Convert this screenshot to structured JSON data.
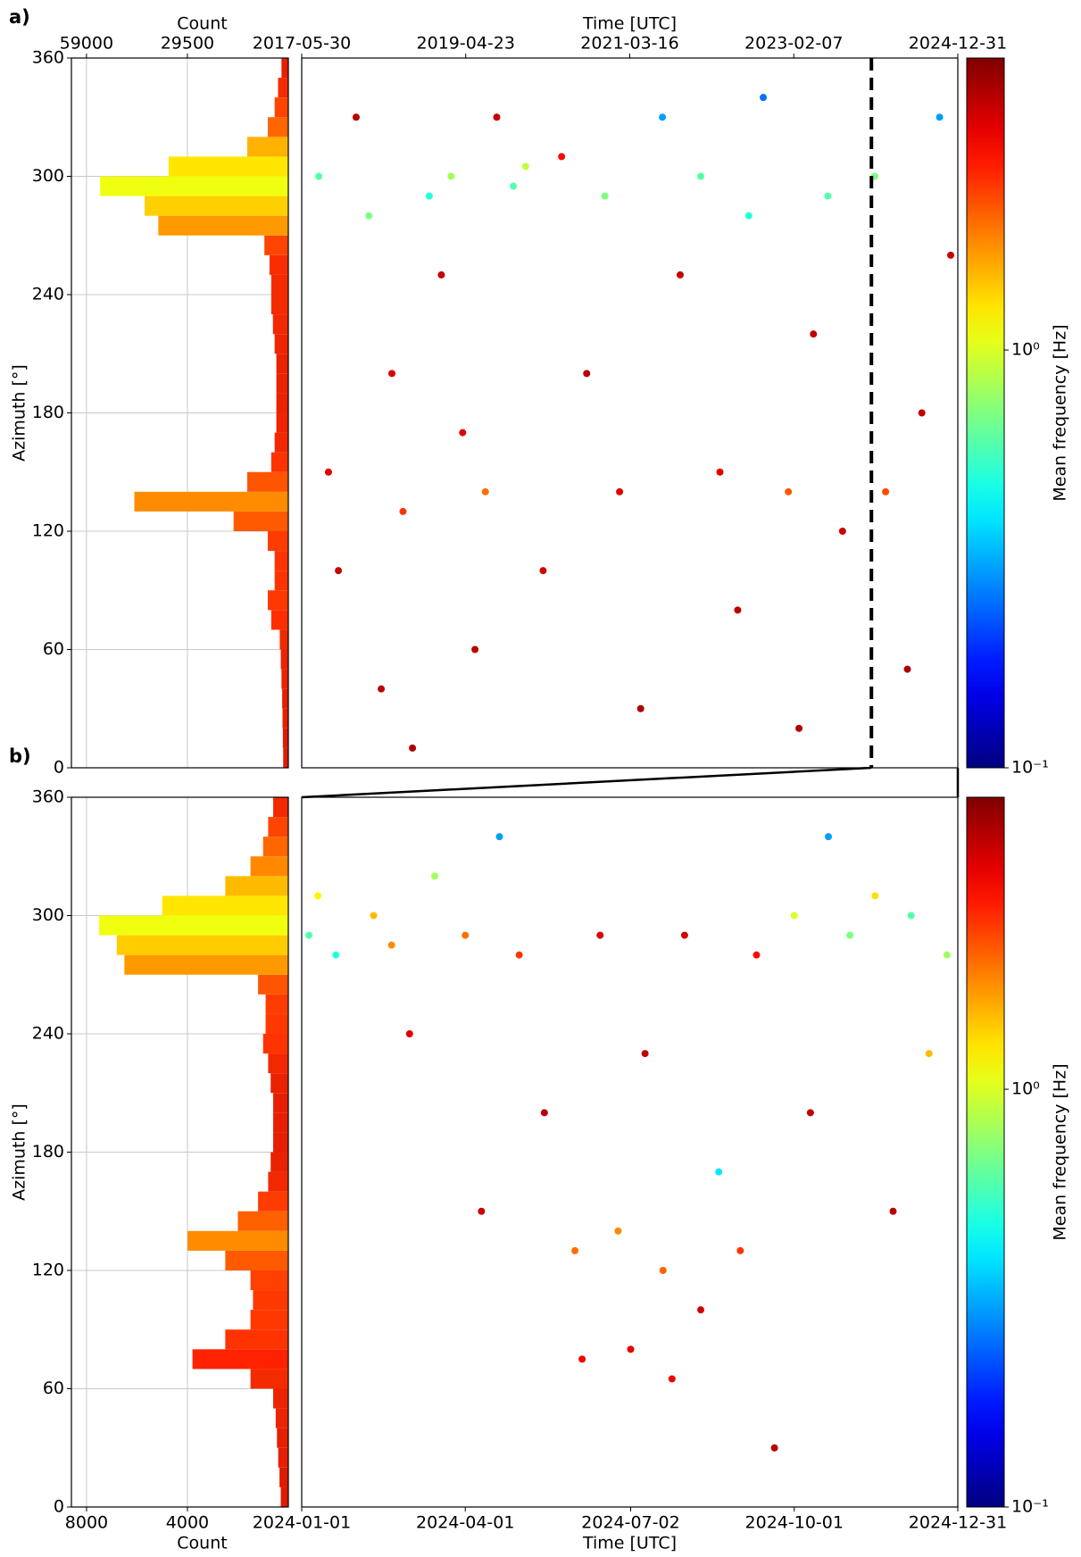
{
  "chart_data": [
    {
      "type": "histogram",
      "panel": "a",
      "xlabel": "Count",
      "ylabel": "Azimuth [°]",
      "xaxis_position": "top",
      "xlim": [
        63400,
        0
      ],
      "xticks": [
        59000,
        29500
      ],
      "ylim": [
        0,
        360
      ],
      "yticks": [
        0,
        60,
        120,
        180,
        240,
        300,
        360
      ],
      "grid": true,
      "bins": [
        0,
        10,
        20,
        30,
        40,
        50,
        60,
        70,
        80,
        90,
        100,
        110,
        120,
        130,
        140,
        150,
        160,
        170,
        180,
        190,
        200,
        210,
        220,
        230,
        240,
        250,
        260,
        270,
        280,
        290,
        300,
        310,
        320,
        330,
        340,
        350,
        360
      ],
      "counts": [
        1500,
        1600,
        1700,
        1800,
        2000,
        2200,
        2500,
        5000,
        6000,
        4000,
        4000,
        6000,
        16000,
        45000,
        12000,
        5000,
        4000,
        3500,
        3500,
        3500,
        3500,
        4000,
        4500,
        5000,
        5000,
        5500,
        7000,
        38000,
        42000,
        55000,
        35000,
        12000,
        6000,
        4000,
        3000,
        2000
      ],
      "colors": [
        "#e01b00",
        "#e01b00",
        "#e61f00",
        "#e61f00",
        "#ec2300",
        "#ec2300",
        "#f02a00",
        "#ff2e00",
        "#ff3800",
        "#ff3300",
        "#ff3300",
        "#ff3c00",
        "#ff5a00",
        "#ff8c00",
        "#ff5500",
        "#ff3300",
        "#f22800",
        "#ee2500",
        "#ea2200",
        "#ea2200",
        "#ea2200",
        "#ee2500",
        "#f22800",
        "#f52b00",
        "#f52b00",
        "#f82e00",
        "#ff4400",
        "#ff9900",
        "#ffd000",
        "#f0ff10",
        "#ffe600",
        "#ffb300",
        "#ff6600",
        "#ff4400",
        "#f52b00",
        "#e61f00"
      ]
    },
    {
      "type": "scatter",
      "panel_label": "a)",
      "xlabel": "Time [UTC]",
      "xaxis_position": "top",
      "xlim": [
        "2017-05-30",
        "2024-12-31"
      ],
      "xticks": [
        "2017-05-30",
        "2019-04-23",
        "2021-03-16",
        "2023-02-07",
        "2024-12-31"
      ],
      "ylim": [
        0,
        360
      ],
      "x": [
        "2017-08-10",
        "2017-09-20",
        "2017-11-01",
        "2018-01-15",
        "2018-03-10",
        "2018-05-01",
        "2018-06-15",
        "2018-08-01",
        "2018-09-10",
        "2018-11-20",
        "2019-01-10",
        "2019-02-20",
        "2019-04-10",
        "2019-06-01",
        "2019-07-15",
        "2019-09-01",
        "2019-11-10",
        "2020-01-01",
        "2020-03-15",
        "2020-06-01",
        "2020-09-15",
        "2020-12-01",
        "2021-02-01",
        "2021-05-01",
        "2021-08-01",
        "2021-10-15",
        "2022-01-10",
        "2022-04-01",
        "2022-06-15",
        "2022-08-01",
        "2022-10-01",
        "2023-01-15",
        "2023-03-01",
        "2023-05-01",
        "2023-07-01",
        "2023-09-01",
        "2024-01-15",
        "2024-03-01",
        "2024-06-01",
        "2024-08-01",
        "2024-10-15",
        "2024-12-01"
      ],
      "y": [
        300,
        150,
        100,
        330,
        280,
        40,
        200,
        130,
        10,
        290,
        250,
        300,
        170,
        60,
        140,
        330,
        295,
        305,
        100,
        310,
        200,
        290,
        140,
        30,
        330,
        250,
        300,
        150,
        80,
        280,
        340,
        140,
        20,
        220,
        290,
        120,
        300,
        140,
        50,
        180,
        330,
        260
      ],
      "values": [
        0.6,
        3.5,
        3.8,
        4,
        0.7,
        4,
        3.5,
        2.5,
        4.2,
        0.5,
        3.8,
        0.8,
        3.5,
        4,
        2,
        3.8,
        0.6,
        0.9,
        3.6,
        3,
        4,
        0.7,
        3.5,
        4.2,
        0.3,
        3.8,
        0.6,
        3.4,
        4,
        0.5,
        0.25,
        2.2,
        4.1,
        3.9,
        0.6,
        3.7,
        0.7,
        2.3,
        4.2,
        3.9,
        0.3,
        3.8
      ],
      "colorbar": {
        "label": "Mean frequency [Hz]",
        "colormap": "jet",
        "log": true,
        "lim": [
          0.1,
          5
        ],
        "ticks": [
          {
            "value": 1,
            "label": "10⁰"
          },
          {
            "value": 0.1,
            "label": "10⁻¹"
          }
        ]
      }
    },
    {
      "type": "histogram",
      "panel": "b",
      "xlabel": "Count",
      "ylabel": "Azimuth [°]",
      "xaxis_position": "bottom",
      "xlim": [
        8600,
        0
      ],
      "xticks": [
        8000,
        4000
      ],
      "ylim": [
        0,
        360
      ],
      "yticks": [
        0,
        60,
        120,
        180,
        240,
        300,
        360
      ],
      "grid": true,
      "bins": [
        0,
        10,
        20,
        30,
        40,
        50,
        60,
        70,
        80,
        90,
        100,
        110,
        120,
        130,
        140,
        150,
        160,
        170,
        180,
        190,
        200,
        210,
        220,
        230,
        240,
        250,
        260,
        270,
        280,
        290,
        300,
        310,
        320,
        330,
        340,
        350,
        360
      ],
      "counts": [
        300,
        350,
        400,
        450,
        500,
        600,
        1500,
        3800,
        2500,
        1500,
        1400,
        1500,
        2500,
        4000,
        2000,
        1200,
        800,
        700,
        600,
        600,
        600,
        700,
        800,
        1000,
        900,
        900,
        1200,
        6500,
        6800,
        7500,
        5000,
        2500,
        1500,
        1000,
        800,
        600
      ],
      "colors": [
        "#e01b00",
        "#e01b00",
        "#e61f00",
        "#e61f00",
        "#ec2300",
        "#ec2300",
        "#f52b00",
        "#ff2200",
        "#ff3300",
        "#ff3800",
        "#ff3800",
        "#ff4000",
        "#ff5a00",
        "#ff8c00",
        "#ff6000",
        "#ff3c00",
        "#f22800",
        "#ea2200",
        "#e61f00",
        "#e61f00",
        "#e61f00",
        "#ea2200",
        "#f22800",
        "#ff3300",
        "#ff3800",
        "#ff3c00",
        "#ff5500",
        "#ff9900",
        "#ffcc00",
        "#f0ff10",
        "#ffe600",
        "#ffbb00",
        "#ff8800",
        "#ff6600",
        "#ff4400",
        "#f22800"
      ]
    },
    {
      "type": "scatter",
      "panel_label": "b)",
      "xlabel": "Time [UTC]",
      "xaxis_position": "bottom",
      "xlim": [
        "2024-01-01",
        "2024-12-31"
      ],
      "xticks": [
        "2024-01-01",
        "2024-04-01",
        "2024-07-02",
        "2024-10-01",
        "2024-12-31"
      ],
      "ylim": [
        0,
        360
      ],
      "x": [
        "2024-01-05",
        "2024-01-10",
        "2024-01-20",
        "2024-02-10",
        "2024-02-20",
        "2024-03-01",
        "2024-03-15",
        "2024-04-01",
        "2024-04-10",
        "2024-04-20",
        "2024-05-01",
        "2024-05-15",
        "2024-06-01",
        "2024-06-05",
        "2024-06-15",
        "2024-06-25",
        "2024-07-02",
        "2024-07-10",
        "2024-07-20",
        "2024-07-25",
        "2024-08-01",
        "2024-08-10",
        "2024-08-20",
        "2024-09-01",
        "2024-09-10",
        "2024-09-20",
        "2024-10-01",
        "2024-10-10",
        "2024-10-20",
        "2024-11-01",
        "2024-11-15",
        "2024-11-25",
        "2024-12-05",
        "2024-12-15",
        "2024-12-25"
      ],
      "y": [
        290,
        310,
        280,
        300,
        285,
        240,
        320,
        290,
        150,
        340,
        280,
        200,
        130,
        75,
        290,
        140,
        80,
        230,
        120,
        65,
        290,
        100,
        170,
        130,
        280,
        30,
        300,
        200,
        340,
        290,
        310,
        150,
        300,
        230,
        280
      ],
      "values": [
        0.6,
        1.2,
        0.5,
        1.5,
        1.8,
        3.5,
        0.8,
        2,
        3.8,
        0.3,
        2.5,
        4,
        2,
        3.2,
        3.5,
        1.8,
        3.4,
        3.9,
        2.1,
        3.3,
        3.6,
        3.7,
        0.4,
        2.5,
        3,
        4,
        1,
        3.9,
        0.3,
        0.7,
        1.3,
        4,
        0.6,
        1.5,
        0.8
      ],
      "colorbar": {
        "label": "Mean frequency [Hz]",
        "colormap": "jet",
        "log": true,
        "lim": [
          0.1,
          5
        ],
        "ticks": [
          {
            "value": 1,
            "label": "10⁰"
          },
          {
            "value": 0.1,
            "label": "10⁻¹"
          }
        ]
      }
    }
  ]
}
